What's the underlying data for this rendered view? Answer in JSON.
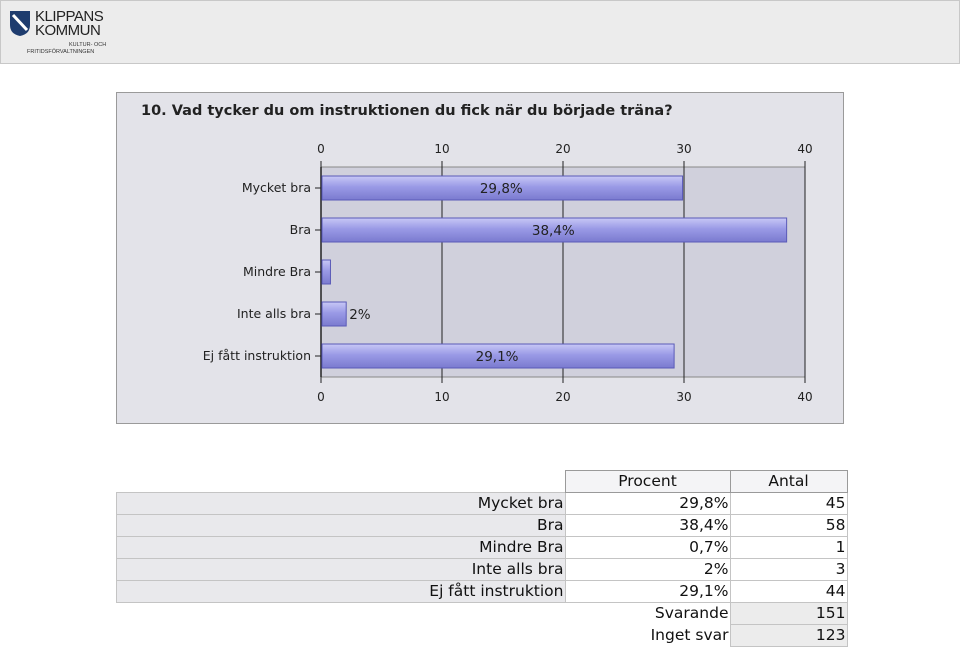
{
  "header": {
    "logo_line1": "KLIPPANS",
    "logo_line2": "KOMMUN",
    "logo_sub1": "KULTUR- OCH",
    "logo_sub2": "FRITIDSFÖRVALTNINGEN"
  },
  "colors": {
    "bar": "#9a9ae6",
    "bar_edge": "#5a5ab8",
    "plot_bg": "#d0d0dc",
    "frame_bg": "#e3e3e9"
  },
  "chart_data": {
    "type": "bar",
    "orientation": "horizontal",
    "title": "10. Vad tycker du om instruktionen du fick när du började träna?",
    "categories": [
      "Mycket bra",
      "Bra",
      "Mindre Bra",
      "Inte alls bra",
      "Ej fått instruktion"
    ],
    "values": [
      29.8,
      38.4,
      0.7,
      2,
      29.1
    ],
    "data_labels": [
      "29,8%",
      "38,4%",
      "",
      "2%",
      "29,1%"
    ],
    "xlim": [
      0,
      40
    ],
    "xticks": [
      0,
      10,
      20,
      30,
      40
    ],
    "grid": true,
    "xlabel": "",
    "ylabel": ""
  },
  "table": {
    "headers": [
      "Procent",
      "Antal"
    ],
    "rows": [
      {
        "label": "Mycket bra",
        "percent": "29,8%",
        "count": "45"
      },
      {
        "label": "Bra",
        "percent": "38,4%",
        "count": "58"
      },
      {
        "label": "Mindre Bra",
        "percent": "0,7%",
        "count": "1"
      },
      {
        "label": "Inte alls bra",
        "percent": "2%",
        "count": "3"
      },
      {
        "label": "Ej fått instruktion",
        "percent": "29,1%",
        "count": "44"
      }
    ],
    "summary": [
      {
        "label": "Svarande",
        "value": "151"
      },
      {
        "label": "Inget svar",
        "value": "123"
      }
    ]
  }
}
